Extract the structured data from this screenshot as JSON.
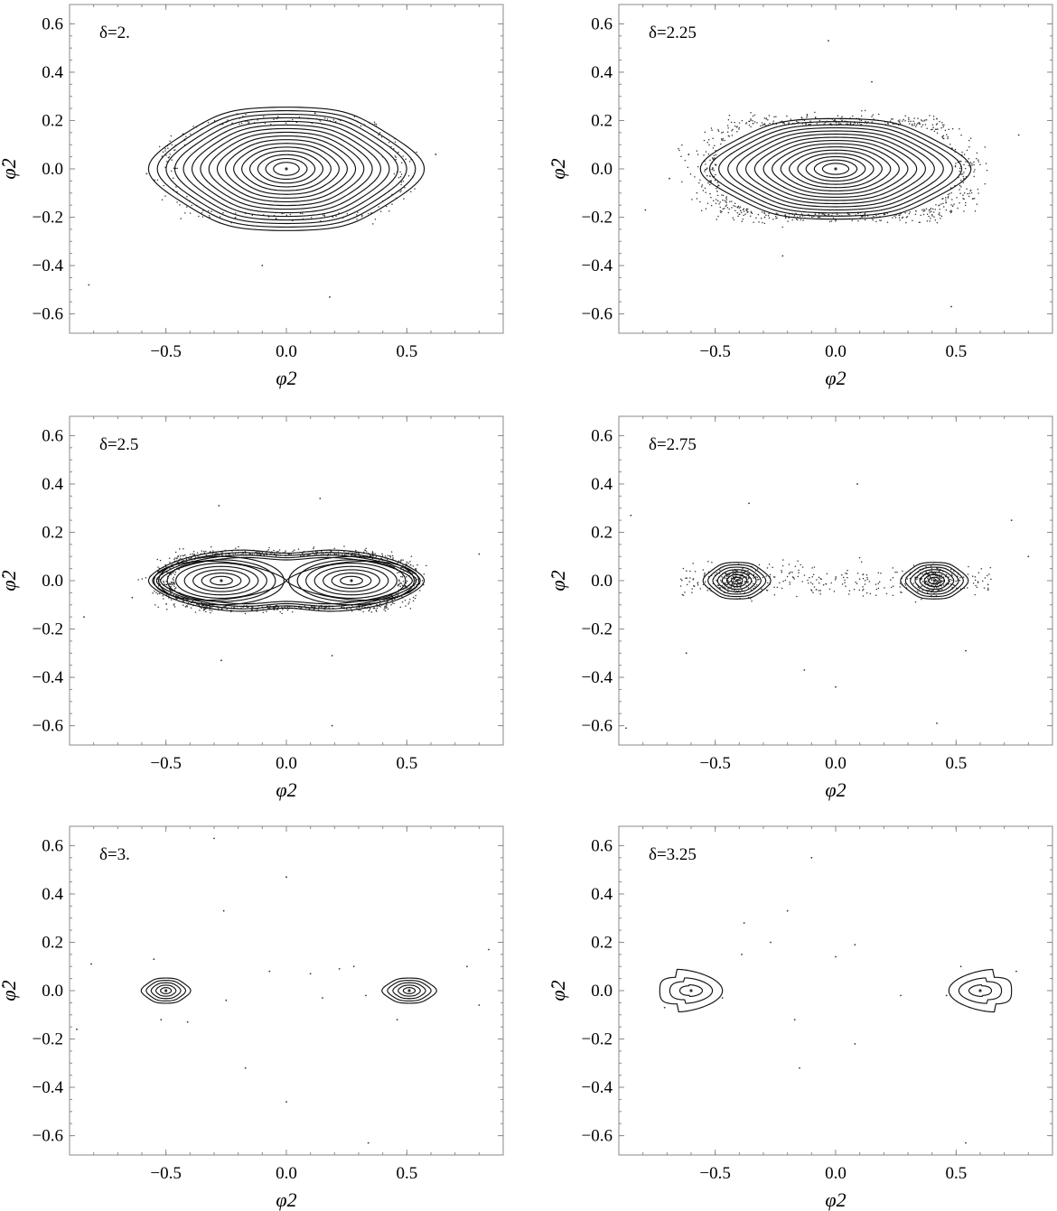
{
  "chart_data": [
    {
      "type": "scatter",
      "annotation": "δ=2.",
      "xlabel": "φ2",
      "ylabel": "φ̇2",
      "xlim": [
        -0.9,
        0.9
      ],
      "ylim": [
        -0.68,
        0.68
      ],
      "xticks": [
        -0.5,
        0.0,
        0.5
      ],
      "yticks": [
        -0.6,
        -0.4,
        -0.2,
        0.0,
        0.2,
        0.4,
        0.6
      ],
      "xtick_labels": [
        "−0.5",
        "0.0",
        "0.5"
      ],
      "ytick_labels": [
        "−0.6",
        "−0.4",
        "−0.2",
        "0.0",
        "0.2",
        "0.4",
        "0.6"
      ],
      "islands": [
        {
          "cx": 0.0,
          "cy": 0.0,
          "rx": 0.53,
          "ry": 0.27,
          "rings": 16,
          "shape": "hexagonal"
        }
      ],
      "separatrix": null,
      "chaotic_halo": {
        "rx": 0.56,
        "ry": 0.3,
        "count": 220
      },
      "stray_points": [
        [
          -0.82,
          -0.48
        ],
        [
          0.62,
          0.06
        ],
        [
          0.4,
          0.05
        ],
        [
          -0.1,
          -0.4
        ],
        [
          0.18,
          -0.53
        ],
        [
          -0.58,
          -0.02
        ]
      ]
    },
    {
      "type": "scatter",
      "annotation": "δ=2.25",
      "xlabel": "φ2",
      "ylabel": "φ̇2",
      "xlim": [
        -0.9,
        0.9
      ],
      "ylim": [
        -0.68,
        0.68
      ],
      "xticks": [
        -0.5,
        0.0,
        0.5
      ],
      "yticks": [
        -0.6,
        -0.4,
        -0.2,
        0.0,
        0.2,
        0.4,
        0.6
      ],
      "xtick_labels": [
        "−0.5",
        "0.0",
        "0.5"
      ],
      "ytick_labels": [
        "−0.6",
        "−0.4",
        "−0.2",
        "0.0",
        "0.2",
        "0.4",
        "0.6"
      ],
      "islands": [
        {
          "cx": 0.0,
          "cy": 0.0,
          "rx": 0.52,
          "ry": 0.22,
          "rings": 15,
          "shape": "hexagonal"
        }
      ],
      "separatrix": null,
      "chaotic_halo": {
        "rx": 0.62,
        "ry": 0.3,
        "count": 700
      },
      "stray_points": [
        [
          -0.79,
          -0.17
        ],
        [
          -0.69,
          -0.04
        ],
        [
          0.76,
          0.14
        ],
        [
          -0.22,
          -0.36
        ],
        [
          0.48,
          -0.57
        ],
        [
          0.15,
          0.36
        ],
        [
          -0.03,
          0.53
        ]
      ]
    },
    {
      "type": "scatter",
      "annotation": "δ=2.5",
      "xlabel": "φ2",
      "ylabel": "φ̇2",
      "xlim": [
        -0.9,
        0.9
      ],
      "ylim": [
        -0.68,
        0.68
      ],
      "xticks": [
        -0.5,
        0.0,
        0.5
      ],
      "yticks": [
        -0.6,
        -0.4,
        -0.2,
        0.0,
        0.2,
        0.4,
        0.6
      ],
      "xtick_labels": [
        "−0.5",
        "0.0",
        "0.5"
      ],
      "ytick_labels": [
        "−0.6",
        "−0.4",
        "−0.2",
        "0.0",
        "0.2",
        "0.4",
        "0.6"
      ],
      "islands": [
        {
          "cx": -0.27,
          "cy": 0.0,
          "rx": 0.26,
          "ry": 0.1,
          "rings": 7,
          "shape": "oval"
        },
        {
          "cx": 0.27,
          "cy": 0.0,
          "rx": 0.26,
          "ry": 0.1,
          "rings": 7,
          "shape": "oval"
        }
      ],
      "separatrix": {
        "rx": 0.55,
        "ry": 0.13,
        "outer_rings": 4
      },
      "chaotic_halo": {
        "rx": 0.58,
        "ry": 0.17,
        "count": 900
      },
      "stray_points": [
        [
          -0.84,
          -0.15
        ],
        [
          0.8,
          0.11
        ],
        [
          -0.28,
          0.31
        ],
        [
          0.14,
          0.34
        ],
        [
          -0.27,
          -0.33
        ],
        [
          0.19,
          -0.31
        ],
        [
          0.19,
          -0.6
        ],
        [
          -0.64,
          -0.07
        ]
      ]
    },
    {
      "type": "scatter",
      "annotation": "δ=2.75",
      "xlabel": "φ2",
      "ylabel": "φ̇2",
      "xlim": [
        -0.9,
        0.9
      ],
      "ylim": [
        -0.68,
        0.68
      ],
      "xticks": [
        -0.5,
        0.0,
        0.5
      ],
      "yticks": [
        -0.6,
        -0.4,
        -0.2,
        0.0,
        0.2,
        0.4,
        0.6
      ],
      "xtick_labels": [
        "−0.5",
        "0.0",
        "0.5"
      ],
      "ytick_labels": [
        "−0.6",
        "−0.4",
        "−0.2",
        "0.0",
        "0.2",
        "0.4",
        "0.6"
      ],
      "islands": [
        {
          "cx": -0.41,
          "cy": 0.0,
          "rx": 0.13,
          "ry": 0.08,
          "rings": 7,
          "shape": "hexagonal"
        },
        {
          "cx": 0.41,
          "cy": 0.0,
          "rx": 0.13,
          "ry": 0.08,
          "rings": 7,
          "shape": "hexagonal"
        }
      ],
      "separatrix": null,
      "chaotic_halo": {
        "rx": 0.68,
        "ry": 0.22,
        "count": 650
      },
      "stray_points": [
        [
          0.09,
          0.4
        ],
        [
          -0.36,
          0.32
        ],
        [
          0.73,
          0.25
        ],
        [
          0.8,
          0.1
        ],
        [
          -0.85,
          0.27
        ],
        [
          -0.13,
          -0.37
        ],
        [
          0.0,
          -0.44
        ],
        [
          0.42,
          -0.59
        ],
        [
          -0.62,
          -0.3
        ],
        [
          0.54,
          -0.29
        ],
        [
          -0.87,
          -0.61
        ]
      ]
    },
    {
      "type": "scatter",
      "annotation": "δ=3.",
      "xlabel": "φ2",
      "ylabel": "φ̇2",
      "xlim": [
        -0.9,
        0.9
      ],
      "ylim": [
        -0.68,
        0.68
      ],
      "xticks": [
        -0.5,
        0.0,
        0.5
      ],
      "yticks": [
        -0.6,
        -0.4,
        -0.2,
        0.0,
        0.2,
        0.4,
        0.6
      ],
      "xtick_labels": [
        "−0.5",
        "0.0",
        "0.5"
      ],
      "ytick_labels": [
        "−0.6",
        "−0.4",
        "−0.2",
        "0.0",
        "0.2",
        "0.4",
        "0.6"
      ],
      "islands": [
        {
          "cx": -0.5,
          "cy": 0.0,
          "rx": 0.095,
          "ry": 0.055,
          "rings": 5,
          "shape": "hexagonal"
        },
        {
          "cx": 0.51,
          "cy": 0.0,
          "rx": 0.105,
          "ry": 0.055,
          "rings": 5,
          "shape": "hexagonal"
        }
      ],
      "separatrix": null,
      "chaotic_halo": null,
      "stray_points": [
        [
          -0.3,
          0.63
        ],
        [
          0.0,
          0.47
        ],
        [
          -0.26,
          0.33
        ],
        [
          -0.81,
          0.11
        ],
        [
          0.84,
          0.17
        ],
        [
          0.75,
          0.1
        ],
        [
          -0.17,
          -0.32
        ],
        [
          0.0,
          -0.46
        ],
        [
          0.34,
          -0.63
        ],
        [
          -0.87,
          -0.16
        ],
        [
          0.46,
          -0.12
        ],
        [
          -0.41,
          -0.13
        ],
        [
          0.22,
          0.09
        ],
        [
          0.1,
          0.07
        ],
        [
          -0.07,
          0.08
        ],
        [
          -0.25,
          -0.04
        ],
        [
          0.15,
          -0.03
        ],
        [
          0.28,
          0.1
        ],
        [
          0.8,
          -0.06
        ],
        [
          -0.55,
          0.13
        ],
        [
          0.33,
          -0.02
        ],
        [
          -0.52,
          -0.12
        ]
      ]
    },
    {
      "type": "scatter",
      "annotation": "δ=3.25",
      "xlabel": "φ2",
      "ylabel": "φ̇2",
      "xlim": [
        -0.9,
        0.9
      ],
      "ylim": [
        -0.68,
        0.68
      ],
      "xticks": [
        -0.5,
        0.0,
        0.5
      ],
      "yticks": [
        -0.6,
        -0.4,
        -0.2,
        0.0,
        0.2,
        0.4,
        0.6
      ],
      "xtick_labels": [
        "−0.5",
        "0.0",
        "0.5"
      ],
      "ytick_labels": [
        "−0.6",
        "−0.4",
        "−0.2",
        "0.0",
        "0.2",
        "0.4",
        "0.6"
      ],
      "islands": [
        {
          "cx": -0.6,
          "cy": 0.0,
          "rx": 0.13,
          "ry": 0.055,
          "rings": 3,
          "shape": "crescent-left"
        },
        {
          "cx": 0.6,
          "cy": 0.0,
          "rx": 0.13,
          "ry": 0.055,
          "rings": 3,
          "shape": "crescent-right"
        }
      ],
      "separatrix": null,
      "chaotic_halo": null,
      "stray_points": [
        [
          -0.1,
          0.55
        ],
        [
          0.08,
          0.19
        ],
        [
          -0.38,
          0.28
        ],
        [
          -0.2,
          0.33
        ],
        [
          -0.27,
          0.2
        ],
        [
          -0.39,
          0.15
        ],
        [
          0.0,
          0.14
        ],
        [
          -0.15,
          -0.32
        ],
        [
          0.54,
          -0.63
        ],
        [
          0.08,
          -0.22
        ],
        [
          -0.17,
          -0.12
        ],
        [
          -0.71,
          -0.07
        ],
        [
          0.52,
          0.1
        ],
        [
          0.75,
          0.08
        ],
        [
          0.27,
          -0.02
        ],
        [
          -0.47,
          -0.03
        ],
        [
          0.46,
          -0.02
        ]
      ]
    }
  ]
}
